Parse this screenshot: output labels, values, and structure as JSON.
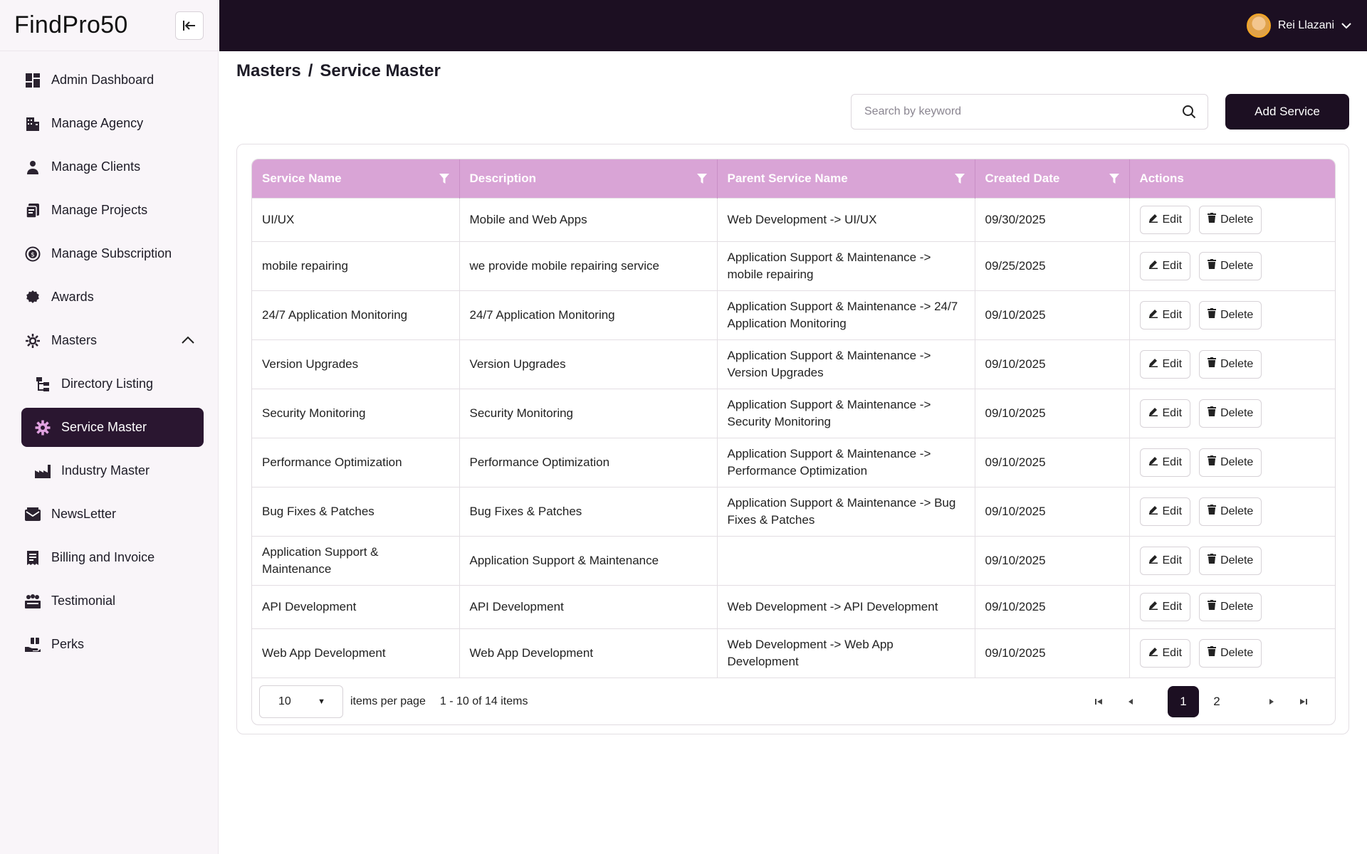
{
  "brand": {
    "name": "FindPro50"
  },
  "user": {
    "name": "Rei Llazani"
  },
  "sidebar": {
    "items": [
      {
        "label": "Admin Dashboard",
        "icon": "dashboard-icon"
      },
      {
        "label": "Manage Agency",
        "icon": "building-icon"
      },
      {
        "label": "Manage Clients",
        "icon": "person-icon"
      },
      {
        "label": "Manage Projects",
        "icon": "projects-icon"
      },
      {
        "label": "Manage Subscription",
        "icon": "subscription-icon"
      },
      {
        "label": "Awards",
        "icon": "award-icon"
      },
      {
        "label": "Masters",
        "icon": "settings-icon"
      },
      {
        "label": "Directory Listing",
        "icon": "directory-icon"
      },
      {
        "label": "Service Master",
        "icon": "gear-icon"
      },
      {
        "label": "Industry Master",
        "icon": "factory-icon"
      },
      {
        "label": "NewsLetter",
        "icon": "mail-icon"
      },
      {
        "label": "Billing and Invoice",
        "icon": "invoice-icon"
      },
      {
        "label": "Testimonial",
        "icon": "testimonial-icon"
      },
      {
        "label": "Perks",
        "icon": "perks-icon"
      }
    ]
  },
  "breadcrumb": {
    "parent": "Masters",
    "separator": "/",
    "current": "Service Master"
  },
  "search": {
    "placeholder": "Search by keyword",
    "value": ""
  },
  "toolbar": {
    "add_label": "Add Service"
  },
  "table": {
    "headers": [
      "Service Name",
      "Description",
      "Parent Service Name",
      "Created Date",
      "Actions"
    ],
    "edit_label": "Edit",
    "delete_label": "Delete",
    "rows": [
      [
        "UI/UX",
        "Mobile and Web Apps",
        "Web Development -> UI/UX",
        "09/30/2025"
      ],
      [
        "mobile repairing",
        "we provide mobile repairing service",
        "Application Support & Maintenance -> mobile repairing",
        "09/25/2025"
      ],
      [
        "24/7 Application Monitoring",
        "24/7 Application Monitoring",
        "Application Support & Maintenance -> 24/7 Application Monitoring",
        "09/10/2025"
      ],
      [
        "Version Upgrades",
        "Version Upgrades",
        "Application Support & Maintenance -> Version Upgrades",
        "09/10/2025"
      ],
      [
        "Security Monitoring",
        "Security Monitoring",
        "Application Support & Maintenance -> Security Monitoring",
        "09/10/2025"
      ],
      [
        "Performance Optimization",
        "Performance Optimization",
        "Application Support & Maintenance -> Performance Optimization",
        "09/10/2025"
      ],
      [
        "Bug Fixes & Patches",
        "Bug Fixes & Patches",
        "Application Support & Maintenance -> Bug Fixes & Patches",
        "09/10/2025"
      ],
      [
        "Application Support & Maintenance",
        "Application Support & Maintenance",
        "",
        "09/10/2025"
      ],
      [
        "API Development",
        "API Development",
        "Web Development -> API Development",
        "09/10/2025"
      ],
      [
        "Web App Development",
        "Web App Development",
        "Web Development -> Web App Development",
        "09/10/2025"
      ]
    ]
  },
  "pager": {
    "page_size": "10",
    "per_page_label": "items per page",
    "range_text": "1 - 10 of 14 items",
    "pages": [
      "1",
      "2"
    ],
    "current_page": "1"
  },
  "colors": {
    "primary": "#1c0f22",
    "header": "#d9a4d6",
    "sidebar_bg": "#f9f5f9"
  }
}
